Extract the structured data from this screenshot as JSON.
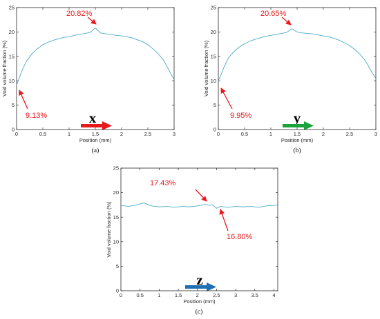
{
  "colors": {
    "line": "#4aa9c9",
    "axis": "#262626",
    "annotation": "#e8191c",
    "arrow_x": "#e8191c",
    "arrow_y": "#1aa33c",
    "arrow_z": "#1f6fb3"
  },
  "chart_data": [
    {
      "type": "line",
      "panel": "(a)",
      "xlabel": "Position (mm)",
      "ylabel": "Void volume fraction (%)",
      "xlim": [
        0,
        3
      ],
      "ylim": [
        0,
        25
      ],
      "x_ticks": [
        "0",
        "0.5",
        "1",
        "1.5",
        "2",
        "2.5",
        "3"
      ],
      "y_ticks": [
        "0",
        "5",
        "10",
        "15",
        "20",
        "25"
      ],
      "grid": false,
      "direction_label": "x",
      "series": [
        {
          "x": [
            0,
            0.05,
            0.1,
            0.15,
            0.2,
            0.3,
            0.4,
            0.5,
            0.6,
            0.7,
            0.8,
            0.9,
            1.0,
            1.1,
            1.2,
            1.3,
            1.4,
            1.5,
            1.6,
            1.7,
            1.8,
            1.9,
            2.0,
            2.1,
            2.2,
            2.3,
            2.4,
            2.5,
            2.6,
            2.7,
            2.8,
            2.85,
            2.9,
            2.95,
            3.0
          ],
          "y": [
            9.13,
            10.5,
            12.0,
            13.2,
            14.2,
            15.6,
            16.6,
            17.4,
            17.9,
            18.3,
            18.6,
            18.9,
            19.0,
            19.3,
            19.5,
            19.7,
            19.9,
            20.82,
            19.8,
            19.6,
            19.5,
            19.3,
            19.2,
            19.0,
            18.8,
            18.4,
            18.0,
            17.4,
            16.5,
            15.5,
            14.2,
            13.2,
            12.2,
            11.2,
            10.2
          ]
        }
      ],
      "annotations": [
        {
          "text": "20.82%",
          "x": 1.5,
          "y": 20.82
        },
        {
          "text": "9.13%",
          "x": 0,
          "y": 9.13
        }
      ]
    },
    {
      "type": "line",
      "panel": "(b)",
      "xlabel": "Position (mm)",
      "ylabel": "Void volume fraction (%)",
      "xlim": [
        0,
        3
      ],
      "ylim": [
        0,
        25
      ],
      "x_ticks": [
        "0",
        "0.5",
        "1",
        "1.5",
        "2",
        "2.5",
        "3"
      ],
      "y_ticks": [
        "0",
        "5",
        "10",
        "15",
        "20",
        "25"
      ],
      "grid": false,
      "direction_label": "y",
      "series": [
        {
          "x": [
            0,
            0.05,
            0.1,
            0.15,
            0.2,
            0.3,
            0.4,
            0.5,
            0.6,
            0.7,
            0.8,
            0.9,
            1.0,
            1.1,
            1.2,
            1.3,
            1.4,
            1.5,
            1.6,
            1.7,
            1.8,
            1.9,
            2.0,
            2.1,
            2.2,
            2.3,
            2.4,
            2.5,
            2.6,
            2.7,
            2.8,
            2.85,
            2.9,
            2.95,
            3.0
          ],
          "y": [
            9.95,
            11.2,
            12.6,
            13.8,
            14.8,
            16.0,
            16.9,
            17.6,
            18.1,
            18.5,
            18.8,
            19.1,
            19.3,
            19.5,
            19.7,
            19.9,
            20.65,
            20.0,
            19.8,
            19.7,
            19.6,
            19.4,
            19.2,
            19.0,
            18.7,
            18.3,
            17.8,
            17.2,
            16.4,
            15.4,
            14.1,
            13.2,
            12.2,
            11.3,
            10.5
          ]
        }
      ],
      "annotations": [
        {
          "text": "20.65%",
          "x": 1.4,
          "y": 20.65
        },
        {
          "text": "9.95%",
          "x": 0,
          "y": 9.95
        }
      ]
    },
    {
      "type": "line",
      "panel": "(c)",
      "xlabel": "Position (mm)",
      "ylabel": "Void volume fraction (%)",
      "xlim": [
        0,
        4.1
      ],
      "ylim": [
        0,
        25
      ],
      "x_ticks": [
        "0",
        "0.5",
        "1",
        "1.5",
        "2",
        "2.5",
        "3",
        "3.5",
        "4"
      ],
      "y_ticks": [
        "0",
        "5",
        "10",
        "15",
        "20",
        "25"
      ],
      "grid": false,
      "direction_label": "z",
      "series": [
        {
          "x": [
            0,
            0.2,
            0.4,
            0.6,
            0.8,
            1.0,
            1.2,
            1.4,
            1.6,
            1.8,
            2.0,
            2.2,
            2.3,
            2.4,
            2.5,
            2.6,
            2.8,
            3.0,
            3.2,
            3.4,
            3.6,
            3.8,
            4.0,
            4.1
          ],
          "y": [
            17.4,
            17.2,
            17.5,
            17.9,
            17.3,
            17.1,
            17.2,
            17.0,
            17.2,
            17.1,
            17.3,
            17.6,
            17.43,
            17.5,
            16.8,
            17.2,
            17.0,
            17.2,
            17.1,
            17.2,
            17.0,
            17.3,
            17.4,
            17.5
          ]
        }
      ],
      "annotations": [
        {
          "text": "17.43%",
          "x": 2.3,
          "y": 17.43
        },
        {
          "text": "16.80%",
          "x": 2.5,
          "y": 16.8
        }
      ]
    }
  ]
}
